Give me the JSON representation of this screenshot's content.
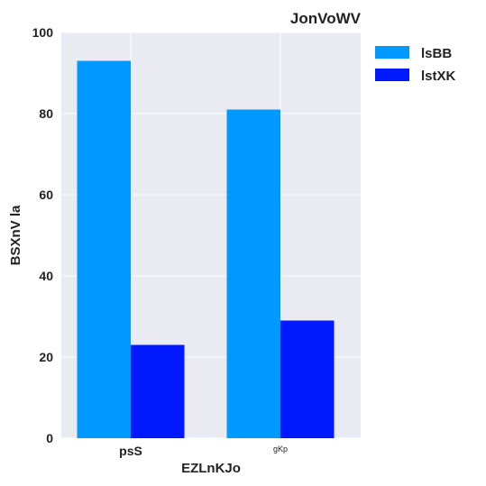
{
  "chart_data": {
    "type": "bar",
    "title": "JonVoWV",
    "xlabel": "EZLnKJo",
    "ylabel": "BSXnV la",
    "categories": [
      "psS",
      "gKp"
    ],
    "series": [
      {
        "name": "lsBB",
        "values": [
          93,
          81
        ],
        "color": "#0099ff"
      },
      {
        "name": "lstXK",
        "values": [
          23,
          29
        ],
        "color": "#0019ff"
      }
    ],
    "ylim": [
      0,
      100
    ],
    "yticks": [
      0,
      20,
      40,
      60,
      80,
      100
    ],
    "grid": true,
    "legend_position": "outside-top-right",
    "background_color": "#eaeaf2",
    "grid_color": "#ffffff"
  }
}
